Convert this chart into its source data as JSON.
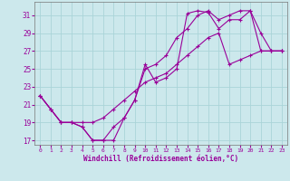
{
  "xlabel": "Windchill (Refroidissement éolien,°C)",
  "xlim_min": -0.5,
  "xlim_max": 23.5,
  "ylim_min": 16.5,
  "ylim_max": 32.5,
  "yticks": [
    17,
    19,
    21,
    23,
    25,
    27,
    29,
    31
  ],
  "xticks": [
    0,
    1,
    2,
    3,
    4,
    5,
    6,
    7,
    8,
    9,
    10,
    11,
    12,
    13,
    14,
    15,
    16,
    17,
    18,
    19,
    20,
    21,
    22,
    23
  ],
  "bg_color": "#cce8ec",
  "grid_color": "#aad4d8",
  "line_color": "#990099",
  "line1_y": [
    22.0,
    20.5,
    19.0,
    19.0,
    18.5,
    17.0,
    17.0,
    18.5,
    19.5,
    21.5,
    25.5,
    23.5,
    24.0,
    25.0,
    31.2,
    31.5,
    31.3,
    29.5,
    30.5,
    30.5,
    31.5,
    27.0,
    27.0,
    27.0
  ],
  "line2_y": [
    22.0,
    20.5,
    19.0,
    19.0,
    18.5,
    17.0,
    17.0,
    17.0,
    19.5,
    21.5,
    25.0,
    25.5,
    26.5,
    28.5,
    29.5,
    31.0,
    31.5,
    30.5,
    31.0,
    31.5,
    31.5,
    29.0,
    27.0,
    27.0
  ],
  "line3_y": [
    22.0,
    20.5,
    19.0,
    19.0,
    19.0,
    19.0,
    19.5,
    20.5,
    21.5,
    22.5,
    23.5,
    24.0,
    24.5,
    25.5,
    26.5,
    27.5,
    28.5,
    29.0,
    25.5,
    26.0,
    26.5,
    27.0,
    27.0,
    27.0
  ]
}
